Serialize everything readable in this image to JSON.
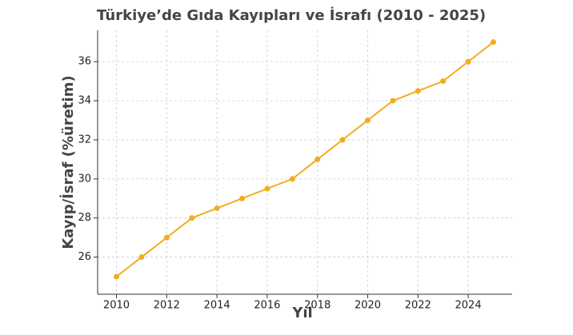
{
  "chart_data": {
    "type": "line",
    "title": "Türkiye’de Gıda Kayıpları ve İsrafı (2010 - 2025)",
    "x_label": "Yıl",
    "y_label": "Kayıp/İsraf (%üretim)",
    "x": [
      2010,
      2011,
      2012,
      2013,
      2014,
      2015,
      2016,
      2017,
      2018,
      2019,
      2020,
      2021,
      2022,
      2023,
      2024,
      2025
    ],
    "series": [
      {
        "name": "Kayıp/İsraf",
        "color": "#f0ae1e",
        "values": [
          25,
          26,
          27,
          28,
          28.5,
          29,
          29.5,
          30,
          31,
          32,
          33,
          34,
          34.5,
          35,
          36,
          37
        ]
      }
    ],
    "xlim": [
      2009.25,
      2025.75
    ],
    "xticks": [
      2010,
      2012,
      2014,
      2016,
      2018,
      2020,
      2022,
      2024
    ],
    "ylim": [
      24.1,
      37.6
    ],
    "yticks": [
      26,
      28,
      30,
      32,
      34,
      36
    ],
    "grid": true
  }
}
